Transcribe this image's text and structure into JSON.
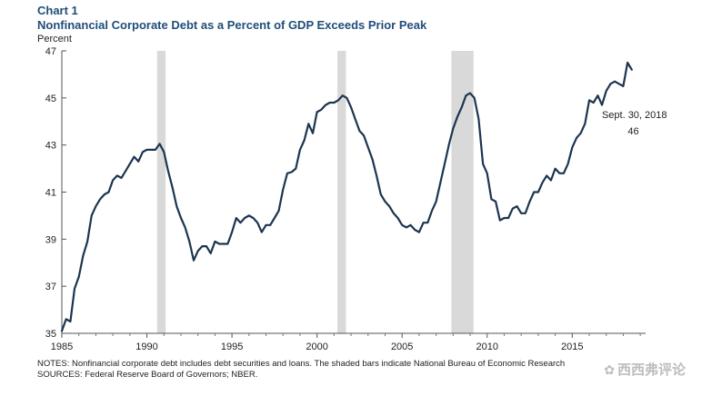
{
  "chart_data": {
    "type": "line",
    "chart_number": "Chart 1",
    "title": "Nonfinancial Corporate Debt as a Percent of GDP Exceeds Prior Peak",
    "ylabel": "Percent",
    "xlabel": "",
    "xlim": [
      1985,
      2019.1
    ],
    "ylim": [
      35,
      47
    ],
    "yticks": [
      35,
      37,
      39,
      41,
      43,
      45,
      47
    ],
    "xticks": [
      1985,
      1990,
      1995,
      2000,
      2005,
      2010,
      2015
    ],
    "recessions": [
      [
        1990.6,
        1991.1
      ],
      [
        2001.2,
        2001.7
      ],
      [
        2007.9,
        2009.2
      ]
    ],
    "annotation": {
      "label": "Sept. 30, 2018",
      "value": "46",
      "x": 2018.7
    },
    "series": [
      {
        "name": "Nonfinancial corporate debt as a percent of GDP",
        "color": "#1c3550",
        "x": [
          1985.0,
          1985.25,
          1985.5,
          1985.75,
          1986.0,
          1986.25,
          1986.5,
          1986.75,
          1987.0,
          1987.25,
          1987.5,
          1987.75,
          1988.0,
          1988.25,
          1988.5,
          1988.75,
          1989.0,
          1989.25,
          1989.5,
          1989.75,
          1990.0,
          1990.25,
          1990.5,
          1990.75,
          1991.0,
          1991.25,
          1991.5,
          1991.75,
          1992.0,
          1992.25,
          1992.5,
          1992.75,
          1993.0,
          1993.25,
          1993.5,
          1993.75,
          1994.0,
          1994.25,
          1994.5,
          1994.75,
          1995.0,
          1995.25,
          1995.5,
          1995.75,
          1996.0,
          1996.25,
          1996.5,
          1996.75,
          1997.0,
          1997.25,
          1997.5,
          1997.75,
          1998.0,
          1998.25,
          1998.5,
          1998.75,
          1999.0,
          1999.25,
          1999.5,
          1999.75,
          2000.0,
          2000.25,
          2000.5,
          2000.75,
          2001.0,
          2001.25,
          2001.5,
          2001.75,
          2002.0,
          2002.25,
          2002.5,
          2002.75,
          2003.0,
          2003.25,
          2003.5,
          2003.75,
          2004.0,
          2004.25,
          2004.5,
          2004.75,
          2005.0,
          2005.25,
          2005.5,
          2005.75,
          2006.0,
          2006.25,
          2006.5,
          2006.75,
          2007.0,
          2007.25,
          2007.5,
          2007.75,
          2008.0,
          2008.25,
          2008.5,
          2008.75,
          2009.0,
          2009.25,
          2009.5,
          2009.75,
          2010.0,
          2010.25,
          2010.5,
          2010.75,
          2011.0,
          2011.25,
          2011.5,
          2011.75,
          2012.0,
          2012.25,
          2012.5,
          2012.75,
          2013.0,
          2013.25,
          2013.5,
          2013.75,
          2014.0,
          2014.25,
          2014.5,
          2014.75,
          2015.0,
          2015.25,
          2015.5,
          2015.75,
          2016.0,
          2016.25,
          2016.5,
          2016.75,
          2017.0,
          2017.25,
          2017.5,
          2017.75,
          2018.0,
          2018.25,
          2018.5
        ],
        "values": [
          35.1,
          35.6,
          35.5,
          36.9,
          37.4,
          38.3,
          38.9,
          40.0,
          40.4,
          40.7,
          40.9,
          41.0,
          41.5,
          41.7,
          41.6,
          41.9,
          42.2,
          42.5,
          42.3,
          42.7,
          42.8,
          42.8,
          42.8,
          43.05,
          42.7,
          41.9,
          41.2,
          40.4,
          39.9,
          39.5,
          38.9,
          38.1,
          38.5,
          38.7,
          38.7,
          38.4,
          38.9,
          38.8,
          38.8,
          38.8,
          39.3,
          39.9,
          39.7,
          39.9,
          40.0,
          39.9,
          39.7,
          39.3,
          39.6,
          39.6,
          39.9,
          40.2,
          41.1,
          41.8,
          41.85,
          42.0,
          42.8,
          43.2,
          43.9,
          43.5,
          44.4,
          44.5,
          44.7,
          44.8,
          44.8,
          44.9,
          45.1,
          45.0,
          44.6,
          44.1,
          43.6,
          43.4,
          42.9,
          42.4,
          41.7,
          40.9,
          40.6,
          40.4,
          40.1,
          39.9,
          39.6,
          39.5,
          39.6,
          39.4,
          39.3,
          39.7,
          39.7,
          40.2,
          40.6,
          41.4,
          42.2,
          43.0,
          43.7,
          44.2,
          44.6,
          45.1,
          45.2,
          45.0,
          44.1,
          42.2,
          41.8,
          40.7,
          40.6,
          39.8,
          39.9,
          39.9,
          40.3,
          40.4,
          40.1,
          40.1,
          40.6,
          41.0,
          41.0,
          41.4,
          41.7,
          41.5,
          42.0,
          41.8,
          41.8,
          42.2,
          42.9,
          43.3,
          43.5,
          43.9,
          44.9,
          44.8,
          45.1,
          44.7,
          45.3,
          45.6,
          45.7,
          45.6,
          45.5,
          46.5,
          46.2
        ]
      }
    ]
  },
  "notes": {
    "line1": "NOTES: Nonfinancial corporate debt includes debt securities and loans. The shaded bars indicate National Bureau of Economic Research",
    "line2": "SOURCES: Federal Reserve Board of Governors; NBER."
  },
  "watermark": {
    "text": "西西弗评论",
    "icon": "wechat-icon"
  }
}
